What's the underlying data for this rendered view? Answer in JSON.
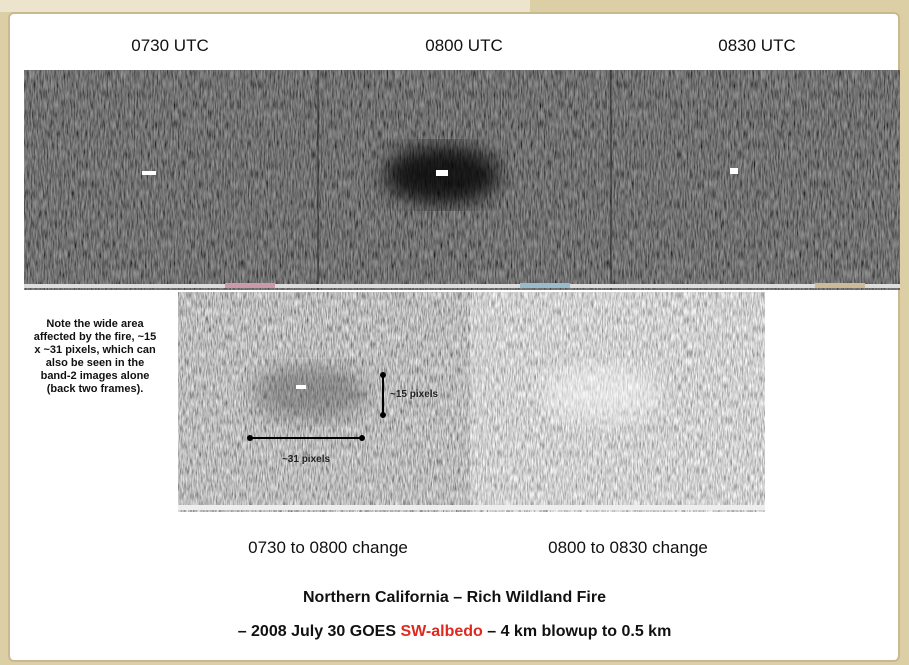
{
  "panels": {
    "top": [
      "0730 UTC",
      "0800 UTC",
      "0830 UTC"
    ],
    "bottom": [
      "0730 to 0800 change",
      "0800 to 0830 change"
    ]
  },
  "note": "Note the wide area affected by the fire, ~15 x ~31 pixels, which can also be seen in the band-2 images alone (back two frames).",
  "annotations": {
    "vertical": "~15 pixels",
    "horizontal": "~31 pixels"
  },
  "title": {
    "line1": "Northern California – Rich Wildland Fire",
    "line2": {
      "before": "– 2008 July 30 GOES ",
      "highlight": "SW-albedo",
      "after": " – 4 km blowup to 0.5 km"
    }
  }
}
